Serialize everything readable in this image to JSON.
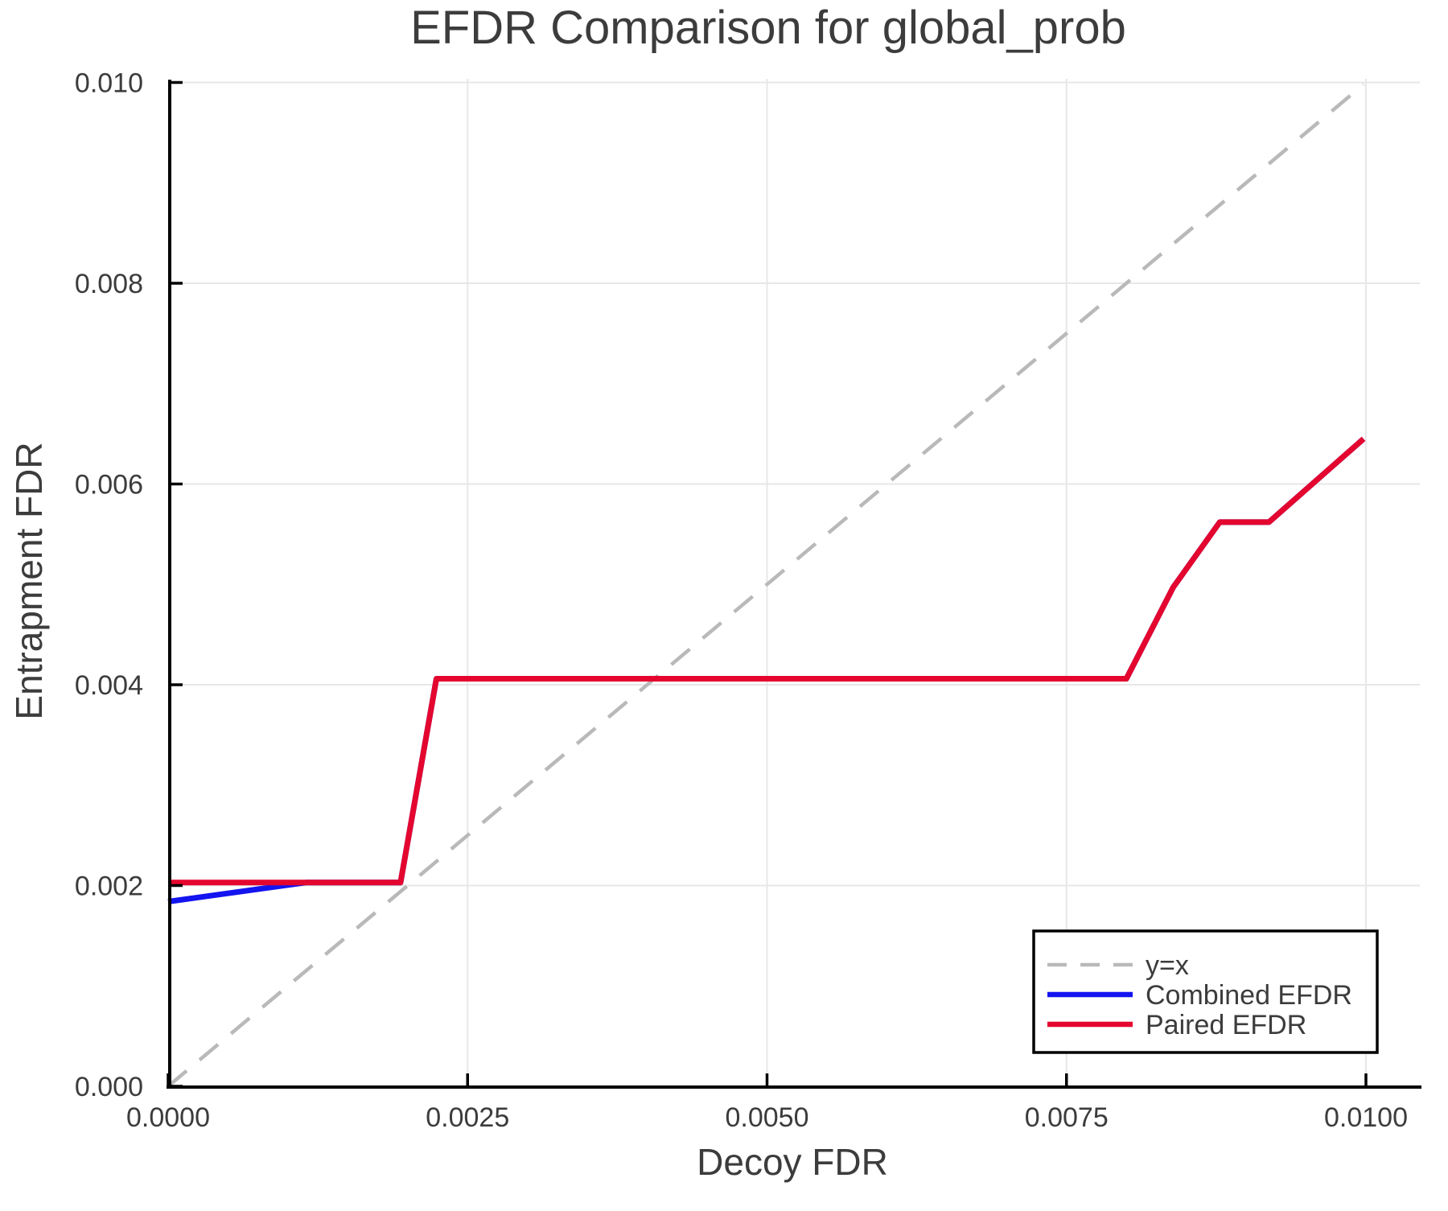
{
  "title": "EFDR Comparison for global_prob",
  "colors": {
    "text": "#3c3c3c",
    "axis": "#000000",
    "grid": "#e7e7e7",
    "identity_line": "#b9b9b9",
    "combined_efdr": "#1414f0",
    "paired_efdr": "#e4062e",
    "legend_border": "#000000",
    "background": "#ffffff"
  },
  "chart_data": {
    "type": "line",
    "title": "EFDR Comparison for global_prob",
    "xlabel": "Decoy FDR",
    "ylabel": "Entrapment FDR",
    "xlim": [
      0,
      0.01045
    ],
    "ylim": [
      0,
      0.01006
    ],
    "grid": true,
    "legend_position": "lower right",
    "x_ticks": [
      0.0,
      0.0025,
      0.005,
      0.0075,
      0.01
    ],
    "x_tick_labels": [
      "0.0000",
      "0.0025",
      "0.0050",
      "0.0075",
      "0.0100"
    ],
    "y_ticks": [
      0.0,
      0.002,
      0.004,
      0.006,
      0.008,
      0.01
    ],
    "y_tick_labels": [
      "0.000",
      "0.002",
      "0.004",
      "0.006",
      "0.008",
      "0.010"
    ],
    "series": [
      {
        "name": "y=x",
        "style": "dashed",
        "color": "#b9b9b9",
        "width": 4.5,
        "dash": "30 21",
        "points": [
          [
            0.0,
            0.0
          ],
          [
            0.00998,
            0.00998
          ]
        ]
      },
      {
        "name": "Combined EFDR",
        "style": "solid",
        "color": "#1414f0",
        "width": 7,
        "dash": "",
        "points": [
          [
            0.0,
            0.00184
          ],
          [
            0.00115,
            0.00203
          ],
          [
            0.00194,
            0.00203
          ],
          [
            0.00224,
            0.00406
          ],
          [
            0.008,
            0.00406
          ],
          [
            0.00839,
            0.00497
          ],
          [
            0.00878,
            0.00562
          ],
          [
            0.00919,
            0.00562
          ],
          [
            0.00998,
            0.00645
          ]
        ]
      },
      {
        "name": "Paired EFDR",
        "style": "solid",
        "color": "#e4062e",
        "width": 7,
        "dash": "",
        "points": [
          [
            0.0,
            0.00203
          ],
          [
            0.00194,
            0.00203
          ],
          [
            0.00224,
            0.00406
          ],
          [
            0.008,
            0.00406
          ],
          [
            0.00839,
            0.00497
          ],
          [
            0.00878,
            0.00562
          ],
          [
            0.00919,
            0.00562
          ],
          [
            0.00998,
            0.00645
          ]
        ]
      }
    ]
  }
}
